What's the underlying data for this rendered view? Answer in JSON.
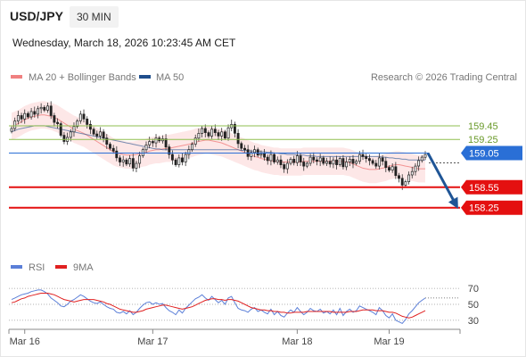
{
  "header": {
    "symbol": "USD/JPY",
    "timeframe": "30 MIN"
  },
  "datetime": "Wednesday, March 18, 2026 10:23:45 AM CET",
  "legend": {
    "bollinger_label": "MA 20 + Bollinger Bands",
    "ma50_label": "MA 50"
  },
  "source": "Research © 2026 Trading Central",
  "rsi_legend": {
    "rsi_label": "RSI",
    "ma_label": "9MA"
  },
  "colors": {
    "bollinger": "#f08080",
    "ma50": "#1f4e8c",
    "rsi": "#5b7fd8",
    "rsi_ma": "#e02020",
    "resistance": "#8fbf4f",
    "pivot": "#2a6fd6",
    "support": "#e41010",
    "arrow": "#1f5596"
  },
  "chart_data": [
    {
      "type": "candlestick",
      "title": "USD/JPY",
      "timeframe": "30 MIN",
      "ylim": [
        158.05,
        159.92
      ],
      "x_tick_labels": [
        "Mar 16",
        "Mar 17",
        "Mar 18",
        "Mar 19"
      ],
      "levels": [
        {
          "label": "159.45",
          "value": 159.45,
          "kind": "resistance"
        },
        {
          "label": "159.25",
          "value": 159.25,
          "kind": "resistance"
        },
        {
          "label": "159.05",
          "value": 159.05,
          "kind": "pivot"
        },
        {
          "label": "158.55",
          "value": 158.55,
          "kind": "support"
        },
        {
          "label": "158.25",
          "value": 158.25,
          "kind": "support"
        }
      ],
      "projection": {
        "from": 159.05,
        "to": 158.25,
        "direction": "down"
      },
      "close": [
        159.41,
        159.52,
        159.6,
        159.55,
        159.63,
        159.58,
        159.66,
        159.62,
        159.7,
        159.72,
        159.68,
        159.74,
        159.6,
        159.5,
        159.48,
        159.31,
        159.22,
        159.28,
        159.36,
        159.44,
        159.52,
        159.62,
        159.55,
        159.47,
        159.4,
        159.33,
        159.3,
        159.36,
        159.27,
        159.18,
        159.12,
        159.08,
        158.98,
        158.92,
        158.95,
        158.89,
        158.97,
        158.83,
        158.9,
        159.01,
        159.1,
        159.17,
        159.22,
        159.2,
        159.27,
        159.23,
        159.26,
        159.14,
        159.03,
        158.95,
        158.88,
        158.98,
        158.92,
        159.03,
        159.1,
        159.18,
        159.27,
        159.34,
        159.41,
        159.35,
        159.3,
        159.4,
        159.35,
        159.3,
        159.36,
        159.27,
        159.42,
        159.47,
        159.34,
        159.19,
        159.12,
        159.1,
        159.0,
        159.06,
        159.1,
        159.02,
        159.04,
        158.99,
        158.94,
        159.03,
        158.92,
        158.95,
        158.88,
        158.82,
        158.9,
        158.96,
        158.91,
        159.01,
        158.92,
        158.86,
        158.9,
        158.99,
        158.95,
        158.93,
        158.98,
        158.9,
        158.93,
        158.89,
        158.95,
        158.88,
        158.97,
        158.85,
        158.92,
        158.96,
        158.9,
        158.93,
        159.03,
        159.0,
        158.97,
        158.94,
        158.9,
        158.86,
        158.98,
        158.93,
        158.84,
        158.8,
        158.85,
        158.72,
        158.68,
        158.58,
        158.63,
        158.73,
        158.78,
        158.86,
        158.94,
        158.99,
        159.03
      ],
      "ma20": [
        159.44,
        159.46,
        159.48,
        159.51,
        159.54,
        159.56,
        159.58,
        159.59,
        159.6,
        159.61,
        159.61,
        159.6,
        159.59,
        159.57,
        159.55,
        159.52,
        159.49,
        159.46,
        159.43,
        159.4,
        159.38,
        159.36,
        159.34,
        159.31,
        159.28,
        159.25,
        159.22,
        159.19,
        159.16,
        159.13,
        159.1,
        159.07,
        159.05,
        159.04,
        159.03,
        159.02,
        159.02,
        159.02,
        159.03,
        159.04,
        159.05,
        159.06,
        159.08,
        159.09,
        159.1,
        159.1,
        159.11,
        159.12,
        159.12,
        159.13,
        159.14,
        159.15,
        159.16,
        159.17,
        159.18,
        159.19,
        159.21,
        159.22,
        159.23,
        159.24,
        159.24,
        159.23,
        159.22,
        159.21,
        159.2,
        159.18,
        159.16,
        159.14,
        159.12,
        159.1,
        159.08,
        159.06,
        159.04,
        159.02,
        159.0,
        158.99,
        158.97,
        158.96,
        158.95,
        158.94,
        158.93,
        158.93,
        158.92,
        158.92,
        158.92,
        158.92,
        158.92,
        158.92,
        158.92,
        158.93,
        158.93,
        158.93,
        158.93,
        158.93,
        158.93,
        158.93,
        158.93,
        158.93,
        158.93,
        158.93,
        158.93,
        158.93,
        158.92,
        158.91,
        158.89,
        158.87,
        158.85,
        158.83,
        158.82,
        158.81,
        158.81,
        158.81,
        158.82,
        158.83,
        158.84,
        158.86,
        158.87,
        158.88,
        158.88,
        158.87,
        158.86,
        158.85,
        158.84,
        158.83,
        158.82,
        158.82,
        158.82
      ],
      "ma50": [
        159.36,
        159.38,
        159.4,
        159.41,
        159.42,
        159.43,
        159.44,
        159.45,
        159.45,
        159.45,
        159.45,
        159.44,
        159.43,
        159.42,
        159.41,
        159.4,
        159.39,
        159.38,
        159.37,
        159.36,
        159.35,
        159.34,
        159.33,
        159.32,
        159.31,
        159.3,
        159.29,
        159.28,
        159.27,
        159.26,
        159.25,
        159.24,
        159.23,
        159.22,
        159.21,
        159.2,
        159.19,
        159.18,
        159.17,
        159.16,
        159.15,
        159.14,
        159.13,
        159.12,
        159.11,
        159.11,
        159.1,
        159.1,
        159.1,
        159.1,
        159.1,
        159.1,
        159.1,
        159.1,
        159.1,
        159.1,
        159.1,
        159.1,
        159.1,
        159.1,
        159.1,
        159.1,
        159.1,
        159.1,
        159.1,
        159.1,
        159.1,
        159.1,
        159.1,
        159.1,
        159.09,
        159.09,
        159.09,
        159.08,
        159.08,
        159.08,
        159.07,
        159.07,
        159.06,
        159.06,
        159.05,
        159.05,
        159.04,
        159.04,
        159.03,
        159.03,
        159.03,
        159.02,
        159.02,
        159.02,
        159.01,
        159.01,
        159.01,
        159.0,
        159.0,
        159.0,
        159.0,
        159.0,
        159.0,
        159.0,
        159.0,
        159.0,
        159.0,
        159.0,
        159.0,
        159.0,
        159.0,
        159.0,
        159.0,
        159.0,
        159.0,
        159.0,
        159.0,
        158.99,
        158.99,
        158.98,
        158.98,
        158.97,
        158.97,
        158.96,
        158.96,
        158.95,
        158.95,
        158.95,
        158.95,
        158.95,
        158.95
      ],
      "bollinger_halfwidth": 0.2
    },
    {
      "type": "line",
      "title": "RSI",
      "ylim": [
        22,
        78
      ],
      "y_tick_labels": [
        "70",
        "50",
        "30"
      ],
      "x_tick_labels": [
        "Mar 16",
        "Mar 17",
        "Mar 18",
        "Mar 19"
      ],
      "series": [
        {
          "name": "RSI",
          "values": [
            56,
            58,
            60,
            62,
            63,
            64,
            66,
            67,
            68,
            68,
            66,
            63,
            58,
            55,
            52,
            48,
            47,
            50,
            54,
            56,
            59,
            62,
            60,
            57,
            54,
            52,
            51,
            53,
            50,
            47,
            45,
            44,
            40,
            39,
            41,
            38,
            42,
            37,
            40,
            45,
            49,
            52,
            53,
            50,
            52,
            50,
            51,
            46,
            42,
            40,
            37,
            43,
            39,
            45,
            49,
            53,
            57,
            59,
            62,
            58,
            55,
            60,
            56,
            52,
            55,
            50,
            58,
            60,
            52,
            45,
            43,
            42,
            40,
            44,
            46,
            41,
            43,
            40,
            38,
            44,
            37,
            41,
            36,
            34,
            39,
            43,
            40,
            46,
            41,
            37,
            40,
            45,
            42,
            41,
            44,
            39,
            41,
            38,
            43,
            37,
            45,
            36,
            41,
            44,
            40,
            42,
            48,
            46,
            44,
            42,
            40,
            37,
            46,
            42,
            36,
            33,
            38,
            30,
            28,
            26,
            31,
            38,
            42,
            47,
            52,
            55,
            58
          ]
        },
        {
          "name": "9MA",
          "values": [
            52,
            53,
            55,
            57,
            58,
            60,
            61,
            62,
            63,
            64,
            64,
            64,
            63,
            62,
            60,
            58,
            56,
            55,
            54,
            53,
            54,
            55,
            56,
            56,
            56,
            56,
            55,
            54,
            53,
            51,
            50,
            48,
            46,
            44,
            43,
            42,
            41,
            40,
            40,
            41,
            42,
            44,
            45,
            46,
            47,
            48,
            49,
            49,
            48,
            47,
            46,
            45,
            44,
            45,
            46,
            47,
            49,
            51,
            53,
            55,
            56,
            57,
            57,
            56,
            56,
            55,
            56,
            56,
            55,
            54,
            52,
            50,
            48,
            46,
            45,
            44,
            43,
            43,
            42,
            42,
            41,
            41,
            40,
            40,
            39,
            39,
            40,
            40,
            40,
            40,
            41,
            41,
            41,
            41,
            41,
            41,
            41,
            41,
            40,
            40,
            40,
            40,
            40,
            41,
            41,
            41,
            42,
            43,
            43,
            43,
            43,
            42,
            42,
            42,
            41,
            40,
            40,
            39,
            37,
            35,
            34,
            33,
            34,
            36,
            38,
            40,
            42
          ]
        }
      ],
      "reference_lines": [
        70,
        50,
        30
      ]
    }
  ]
}
